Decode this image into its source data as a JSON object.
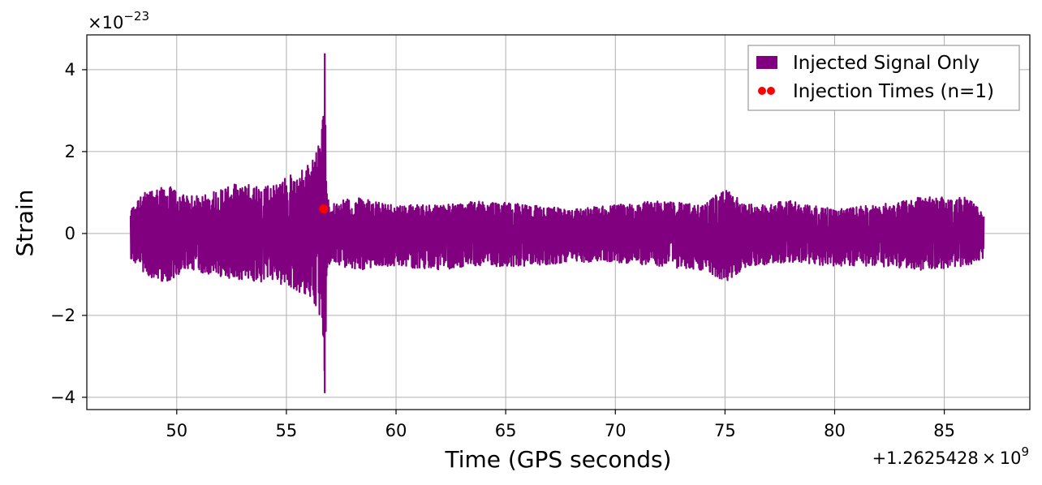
{
  "chart_data": {
    "type": "line",
    "xlabel": "Time (GPS seconds)",
    "ylabel": "Strain",
    "x_offset_label": "+1.2625428 × 10",
    "x_offset_exponent": "9",
    "y_scale_label": "×10",
    "y_scale_exponent": "−23",
    "xlim": [
      45.9,
      88.9
    ],
    "ylim": [
      -4.3,
      4.85
    ],
    "x_ticks": [
      50,
      55,
      60,
      65,
      70,
      75,
      80,
      85
    ],
    "x_tick_labels": [
      "50",
      "55",
      "60",
      "65",
      "70",
      "75",
      "80",
      "85"
    ],
    "y_ticks": [
      -4,
      -2,
      0,
      2,
      4
    ],
    "y_tick_labels": [
      "−4",
      "−2",
      "0",
      "2",
      "4"
    ],
    "grid": true,
    "legend_position": "top-right",
    "series": [
      {
        "name": "Injected Signal Only",
        "kind": "line",
        "color": "#800080",
        "x_start": 47.9,
        "x_end": 86.8,
        "envelope_upper": [
          [
            47.9,
            0.6
          ],
          [
            48.5,
            1.0
          ],
          [
            49.5,
            1.2
          ],
          [
            50.5,
            0.9
          ],
          [
            51.5,
            1.0
          ],
          [
            52.5,
            1.2
          ],
          [
            53.5,
            1.2
          ],
          [
            54.5,
            1.2
          ],
          [
            55.0,
            1.4
          ],
          [
            55.5,
            1.5
          ],
          [
            56.0,
            1.7
          ],
          [
            56.3,
            2.0
          ],
          [
            56.6,
            2.3
          ],
          [
            56.75,
            4.4
          ],
          [
            56.85,
            1.0
          ],
          [
            57.0,
            0.7
          ],
          [
            58,
            0.9
          ],
          [
            60,
            0.7
          ],
          [
            62,
            0.7
          ],
          [
            64,
            0.8
          ],
          [
            66,
            0.7
          ],
          [
            68,
            0.6
          ],
          [
            70,
            0.7
          ],
          [
            72,
            0.8
          ],
          [
            74,
            0.7
          ],
          [
            75,
            1.1
          ],
          [
            76,
            0.7
          ],
          [
            78,
            0.8
          ],
          [
            80,
            0.6
          ],
          [
            82,
            0.7
          ],
          [
            84,
            0.9
          ],
          [
            86,
            0.9
          ],
          [
            86.8,
            0.5
          ]
        ],
        "envelope_lower": [
          [
            47.9,
            -0.6
          ],
          [
            48.5,
            -1.0
          ],
          [
            49.5,
            -1.2
          ],
          [
            50.5,
            -0.9
          ],
          [
            51.5,
            -1.0
          ],
          [
            52.5,
            -1.1
          ],
          [
            53.5,
            -1.2
          ],
          [
            54.5,
            -1.2
          ],
          [
            55.0,
            -1.3
          ],
          [
            55.5,
            -1.4
          ],
          [
            56.0,
            -1.6
          ],
          [
            56.3,
            -1.8
          ],
          [
            56.6,
            -2.2
          ],
          [
            56.75,
            -3.9
          ],
          [
            56.85,
            -1.0
          ],
          [
            57.0,
            -0.7
          ],
          [
            58,
            -0.9
          ],
          [
            60,
            -0.8
          ],
          [
            62,
            -0.9
          ],
          [
            64,
            -0.8
          ],
          [
            66,
            -0.8
          ],
          [
            68,
            -0.7
          ],
          [
            70,
            -0.7
          ],
          [
            72,
            -0.8
          ],
          [
            74,
            -0.9
          ],
          [
            75,
            -1.2
          ],
          [
            76,
            -0.8
          ],
          [
            78,
            -0.7
          ],
          [
            80,
            -0.8
          ],
          [
            82,
            -0.8
          ],
          [
            84,
            -0.9
          ],
          [
            86,
            -0.8
          ],
          [
            86.8,
            -0.6
          ]
        ]
      },
      {
        "name": "Injection Times (n=1)",
        "kind": "scatter",
        "color": "#ff0000",
        "points": [
          [
            56.7,
            0.6
          ]
        ]
      }
    ]
  }
}
